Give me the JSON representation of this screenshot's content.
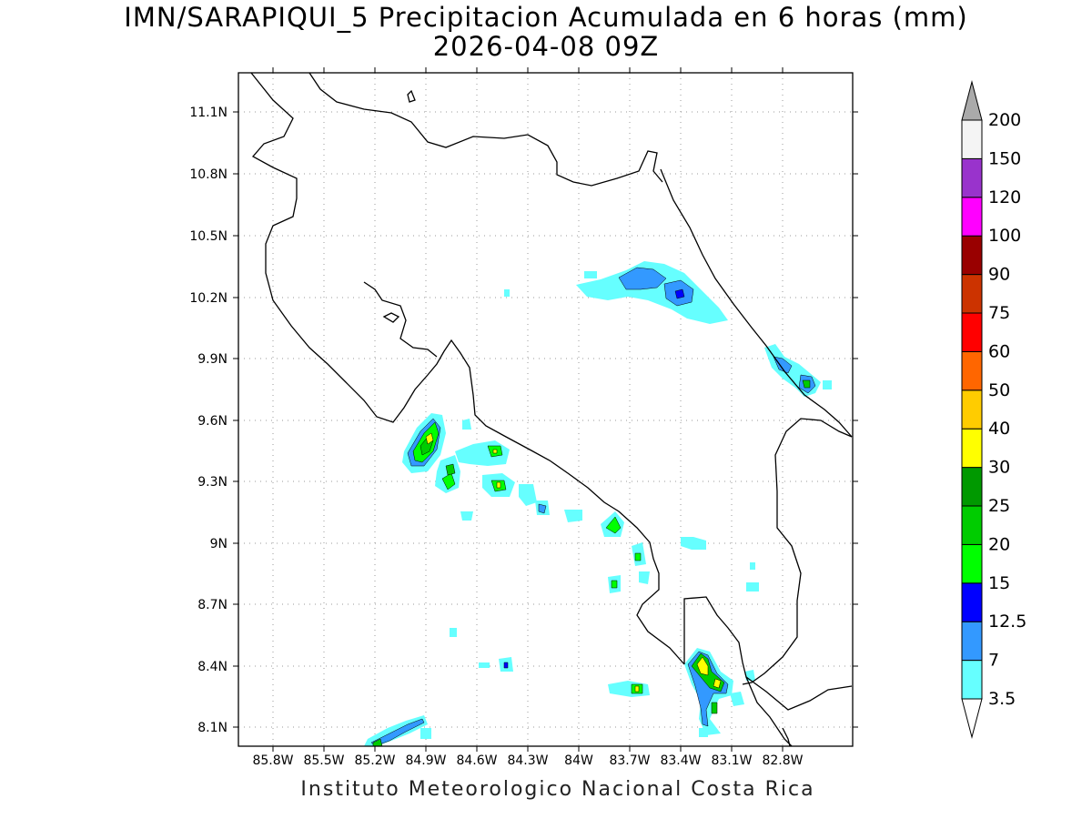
{
  "title": {
    "line1": "IMN/SARAPIQUI_5 Precipitacion Acumulada en 6 horas (mm)",
    "line2": "2026-04-08 09Z"
  },
  "footer": "Instituto Meteorologico Nacional Costa Rica",
  "axes": {
    "x_ticks": [
      "85.8W",
      "85.5W",
      "85.2W",
      "84.9W",
      "84.6W",
      "84.3W",
      "84W",
      "83.7W",
      "83.4W",
      "83.1W",
      "82.8W"
    ],
    "x_values": [
      -85.8,
      -85.5,
      -85.2,
      -84.9,
      -84.6,
      -84.3,
      -84.0,
      -83.7,
      -83.4,
      -83.1,
      -82.8
    ],
    "y_ticks": [
      "11.1N",
      "10.8N",
      "10.5N",
      "10.2N",
      "9.9N",
      "9.6N",
      "9.3N",
      "9N",
      "8.7N",
      "8.4N",
      "8.1N"
    ],
    "y_values": [
      11.1,
      10.8,
      10.5,
      10.2,
      9.9,
      9.6,
      9.3,
      9.0,
      8.7,
      8.4,
      8.1
    ],
    "lon_range": [
      -86.0,
      -83.0
    ],
    "lat_range": [
      8.0,
      11.2
    ],
    "grid": true
  },
  "colorbar": {
    "labels": [
      "3.5",
      "7",
      "12.5",
      "15",
      "20",
      "25",
      "30",
      "40",
      "50",
      "60",
      "75",
      "90",
      "100",
      "120",
      "150",
      "200"
    ],
    "colors": [
      "#66ffff",
      "#3399ff",
      "#0000ff",
      "#00ff00",
      "#00cc00",
      "#009900",
      "#ffff00",
      "#ffcc00",
      "#ff6600",
      "#ff0000",
      "#cc3300",
      "#990000",
      "#ff00ff",
      "#9933cc",
      "#f4f4f4"
    ],
    "above_color": "#aaaaaa",
    "below_color": "#ffffff"
  },
  "precip_colors": {
    "c1": "#66ffff",
    "c2": "#3399ff",
    "c3": "#0000ff",
    "c4": "#00ff00",
    "c5": "#00cc00",
    "c6": "#009900",
    "c7": "#ffff00"
  }
}
